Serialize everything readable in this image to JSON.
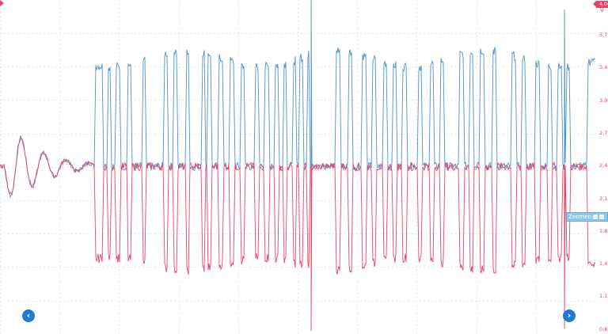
{
  "scope": {
    "channel_marker": "4,04",
    "unit": "V",
    "y_ticks": [
      "3,72",
      "3,4",
      "3,09",
      "2,77",
      "2,45",
      "2,13",
      "1,81",
      "1,49",
      "1,17",
      "0,85"
    ],
    "zoom_label": "Zoomen",
    "nav_left_icon": "‹",
    "nav_right_icon": "›"
  },
  "colors": {
    "channel_a": "#4f93c7",
    "channel_b": "#e8436b",
    "grid": "#d5e6ee",
    "accent": "#1f7bd1"
  },
  "chart_data": {
    "type": "line",
    "ylabel": "V",
    "ylim": [
      0.85,
      4.04
    ],
    "grid": true,
    "series": [
      {
        "values": [
          2.45,
          3.4,
          2.45,
          3.4,
          2.45
        ]
      },
      {
        "values": [
          2.45,
          1.49,
          2.45,
          1.49,
          2.45
        ]
      }
    ]
  }
}
